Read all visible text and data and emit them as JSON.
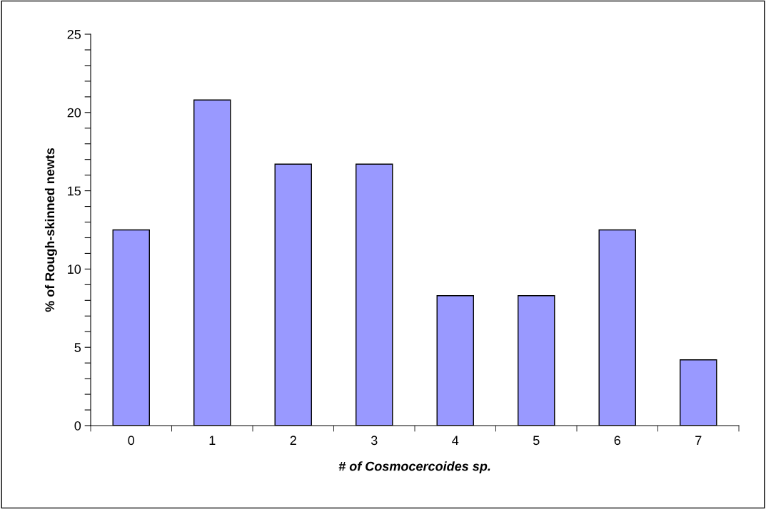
{
  "chart_data": {
    "type": "bar",
    "xlabel": "# of Cosmocercoides sp.",
    "ylabel": "% of Rough-skinned newts",
    "categories": [
      "0",
      "1",
      "2",
      "3",
      "4",
      "5",
      "6",
      "7"
    ],
    "values": [
      12.5,
      20.8,
      16.7,
      16.7,
      8.3,
      8.3,
      12.5,
      4.2
    ],
    "color": "#9999ff",
    "ylim": [
      0,
      25
    ],
    "yticks": [
      0,
      {
        "value": 1,
        "label": null
      },
      {
        "value": 2,
        "label": null
      },
      {
        "value": 3,
        "label": null
      },
      {
        "value": 4,
        "label": null
      },
      5,
      {
        "value": 6,
        "label": null
      },
      {
        "value": 7,
        "label": null
      },
      {
        "value": 8,
        "label": null
      },
      {
        "value": 9,
        "label": null
      },
      10,
      {
        "value": 11,
        "label": null
      },
      {
        "value": 12,
        "label": null
      },
      {
        "value": 13,
        "label": null
      },
      {
        "value": 14,
        "label": null
      },
      15,
      {
        "value": 16,
        "label": null
      },
      {
        "value": 17,
        "label": null
      },
      {
        "value": 18,
        "label": null
      },
      {
        "value": 19,
        "label": null
      },
      20,
      {
        "value": 21,
        "label": null
      },
      {
        "value": 22,
        "label": null
      },
      {
        "value": 23,
        "label": null
      },
      {
        "value": 24,
        "label": null
      },
      25
    ],
    "grid": false,
    "legend": false
  }
}
